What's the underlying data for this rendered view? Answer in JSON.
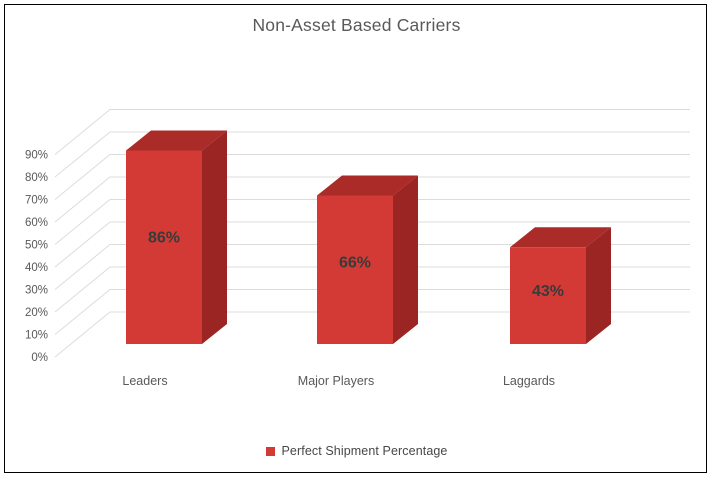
{
  "chart_data": {
    "type": "bar",
    "style": "3d-column",
    "title": "Non-Asset Based Carriers",
    "categories": [
      "Leaders",
      "Major Players",
      "Laggards"
    ],
    "series": [
      {
        "name": "Perfect Shipment Percentage",
        "values": [
          86,
          66,
          43
        ]
      }
    ],
    "data_labels": [
      "86%",
      "66%",
      "43%"
    ],
    "y_ticks": [
      "0%",
      "10%",
      "20%",
      "30%",
      "40%",
      "50%",
      "60%",
      "70%",
      "80%",
      "90%"
    ],
    "y_min": 0,
    "y_max": 90,
    "y_step": 10,
    "xlabel": "",
    "ylabel": "",
    "grid": true,
    "legend_position": "bottom",
    "colors": {
      "bar_front": "#d33a35",
      "bar_top": "#aa2b27",
      "bar_side": "#9b2522",
      "gridline": "#dcdcdc",
      "axis_text": "#595959",
      "title_text": "#595959",
      "data_label_text": "#3a3a3a",
      "legend_swatch": "#d33a35",
      "legend_text": "#474747",
      "frame_border": "#000000",
      "background": "#ffffff"
    }
  }
}
